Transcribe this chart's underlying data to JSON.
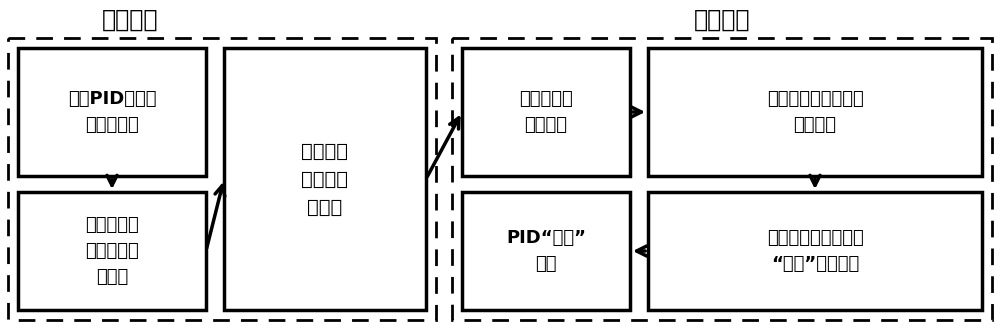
{
  "bg_color": "#ffffff",
  "title_offline": "离线过程",
  "title_online": "在线过程",
  "box1_text": "遍历PID参数代\n入控制系统",
  "box2_text": "闭环设定值\n单位阶跃响\n应试验",
  "box3_text": "提取特征\n量，生成\n训练集",
  "box4_text": "锁定最近邻\n样本系统",
  "box5_text": "等效描述当前系统特\n征量变化",
  "box6_text": "获取当前系统控制器\n“反向”变化规则",
  "box7_text": "PID“拉回”\n整定",
  "font_size": 13,
  "title_font_size": 17
}
